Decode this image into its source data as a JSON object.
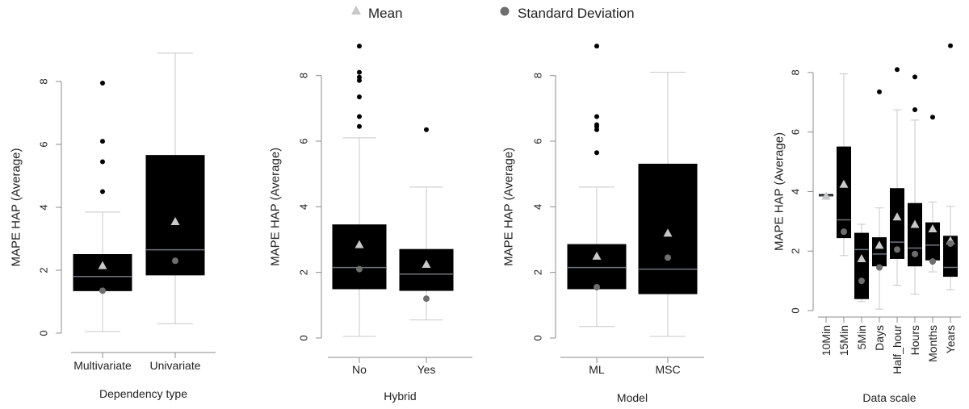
{
  "legend": [
    {
      "label": "Mean",
      "marker": "triangle",
      "color": "#c8c8c8"
    },
    {
      "label": "Standard Deviation",
      "marker": "circle",
      "color": "#6e6e6e"
    }
  ],
  "colors": {
    "box": "#000000",
    "median": "#6e7680",
    "whisker": "#c8c8c8",
    "outlier": "#000000",
    "axis": "#8c8c8c"
  },
  "chart_data": [
    {
      "type": "box",
      "xlabel": "Dependency type",
      "ylabel": "MAPE HAP (Average)",
      "ylim": [
        0,
        9
      ],
      "yticks": [
        0,
        2,
        4,
        6,
        8
      ],
      "categories": [
        "Multivariate",
        "Univariate"
      ],
      "boxes": [
        {
          "category": "Multivariate",
          "whisker_low": 0.05,
          "q1": 1.35,
          "median": 1.8,
          "q3": 2.5,
          "whisker_high": 3.85,
          "mean": 2.15,
          "sd": 1.35,
          "outliers": [
            4.5,
            5.45,
            6.1,
            7.95
          ]
        },
        {
          "category": "Univariate",
          "whisker_low": 0.3,
          "q1": 1.85,
          "median": 2.65,
          "q3": 5.65,
          "whisker_high": 8.9,
          "mean": 3.55,
          "sd": 2.3,
          "outliers": []
        }
      ]
    },
    {
      "type": "box",
      "xlabel": "Hybrid",
      "ylabel": "MAPE HAP (Average)",
      "ylim": [
        0,
        9
      ],
      "yticks": [
        0,
        2,
        4,
        6,
        8
      ],
      "categories": [
        "No",
        "Yes"
      ],
      "boxes": [
        {
          "category": "No",
          "whisker_low": 0.05,
          "q1": 1.5,
          "median": 2.15,
          "q3": 3.45,
          "whisker_high": 6.1,
          "mean": 2.85,
          "sd": 2.1,
          "outliers": [
            6.45,
            6.75,
            7.35,
            7.85,
            7.95,
            8.1,
            8.9
          ]
        },
        {
          "category": "Yes",
          "whisker_low": 0.55,
          "q1": 1.45,
          "median": 1.95,
          "q3": 2.7,
          "whisker_high": 4.6,
          "mean": 2.25,
          "sd": 1.2,
          "outliers": [
            6.35
          ]
        }
      ]
    },
    {
      "type": "box",
      "xlabel": "Model",
      "ylabel": "MAPE HAP (Average)",
      "ylim": [
        0,
        9
      ],
      "yticks": [
        0,
        2,
        4,
        6,
        8
      ],
      "categories": [
        "ML",
        "MSC"
      ],
      "boxes": [
        {
          "category": "ML",
          "whisker_low": 0.35,
          "q1": 1.5,
          "median": 2.15,
          "q3": 2.85,
          "whisker_high": 4.6,
          "mean": 2.5,
          "sd": 1.55,
          "outliers": [
            5.65,
            6.35,
            6.45,
            6.5,
            6.75,
            8.9
          ]
        },
        {
          "category": "MSC",
          "whisker_low": 0.05,
          "q1": 1.35,
          "median": 2.1,
          "q3": 5.3,
          "whisker_high": 8.1,
          "mean": 3.2,
          "sd": 2.45,
          "outliers": []
        }
      ]
    },
    {
      "type": "box",
      "xlabel": "Data scale",
      "ylabel": "MAPE HAP (Average)",
      "ylim": [
        0,
        9
      ],
      "yticks": [
        0,
        2,
        4,
        6,
        8
      ],
      "categories": [
        "10Min",
        "15Min",
        "5Min",
        "Days",
        "Half_hour",
        "Hours",
        "Months",
        "Years"
      ],
      "boxes": [
        {
          "category": "10Min",
          "whisker_low": 3.85,
          "q1": 3.85,
          "median": 3.85,
          "q3": 3.9,
          "whisker_high": 3.9,
          "mean": 3.85,
          "sd": null,
          "outliers": []
        },
        {
          "category": "15Min",
          "whisker_low": 1.85,
          "q1": 2.45,
          "median": 3.05,
          "q3": 5.5,
          "whisker_high": 7.95,
          "mean": 4.25,
          "sd": 2.65,
          "outliers": []
        },
        {
          "category": "5Min",
          "whisker_low": 0.3,
          "q1": 0.4,
          "median": 2.05,
          "q3": 2.6,
          "whisker_high": 2.9,
          "mean": 1.75,
          "sd": 1.0,
          "outliers": []
        },
        {
          "category": "Days",
          "whisker_low": 0.05,
          "q1": 1.5,
          "median": 1.9,
          "q3": 2.45,
          "whisker_high": 3.45,
          "mean": 2.2,
          "sd": 1.45,
          "outliers": [
            7.35
          ]
        },
        {
          "category": "Half_hour",
          "whisker_low": 0.85,
          "q1": 1.75,
          "median": 2.3,
          "q3": 4.1,
          "whisker_high": 6.75,
          "mean": 3.15,
          "sd": 2.05,
          "outliers": [
            8.1
          ]
        },
        {
          "category": "Hours",
          "whisker_low": 0.55,
          "q1": 1.5,
          "median": 2.1,
          "q3": 3.6,
          "whisker_high": 6.4,
          "mean": 2.9,
          "sd": 1.9,
          "outliers": [
            6.75,
            7.85
          ]
        },
        {
          "category": "Months",
          "whisker_low": 1.3,
          "q1": 1.7,
          "median": 2.2,
          "q3": 2.95,
          "whisker_high": 3.65,
          "mean": 2.75,
          "sd": 1.65,
          "outliers": [
            6.5
          ]
        },
        {
          "category": "Years",
          "whisker_low": 0.7,
          "q1": 1.15,
          "median": 1.45,
          "q3": 2.5,
          "whisker_high": 3.5,
          "mean": 2.35,
          "sd": 2.25,
          "outliers": [
            8.9
          ]
        }
      ]
    }
  ]
}
